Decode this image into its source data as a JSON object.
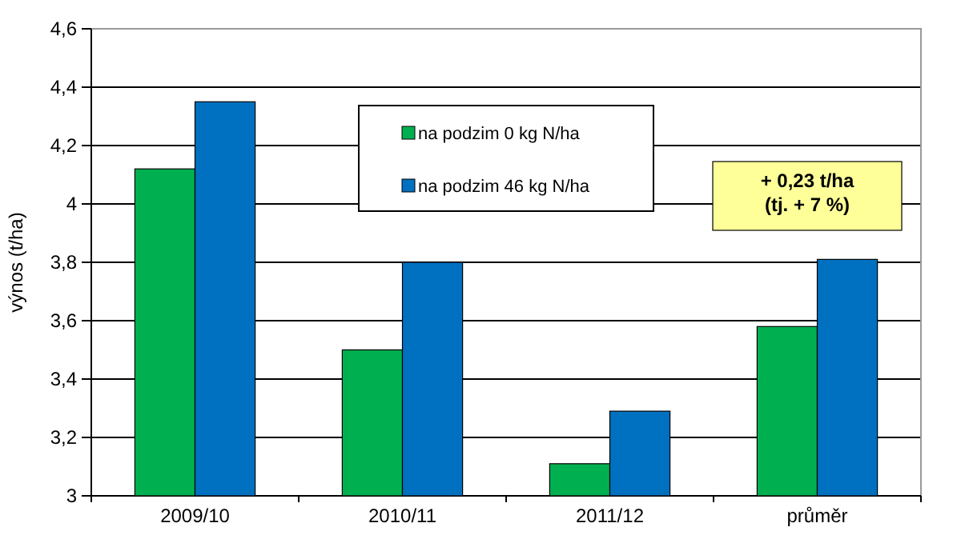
{
  "chart_data": {
    "type": "bar",
    "ylabel": "výnos (t/ha)",
    "categories": [
      "2009/10",
      "2010/11",
      "2011/12",
      "průměr"
    ],
    "series": [
      {
        "name": "na podzim 0 kg N/ha",
        "color": "#00b050",
        "values": [
          4.12,
          3.5,
          3.11,
          3.58
        ]
      },
      {
        "name": "na podzim 46 kg N/ha",
        "color": "#0070c0",
        "values": [
          4.35,
          3.8,
          3.29,
          3.81
        ]
      }
    ],
    "ylim": [
      3,
      4.6
    ],
    "yticks": [
      3,
      {
        "value": 3.2,
        "label": "3,2"
      },
      {
        "value": 3.4,
        "label": "3,4"
      },
      {
        "value": 3.6,
        "label": "3,6"
      },
      {
        "value": 3.8,
        "label": "3,8"
      },
      4,
      {
        "value": 4.2,
        "label": "4,2"
      },
      {
        "value": 4.4,
        "label": "4,4"
      },
      {
        "value": 4.6,
        "label": "4,6"
      }
    ],
    "grid": "y",
    "legend": "top",
    "annotations": [
      "+ 0,23 t/ha\n(tj. + 7 %)"
    ]
  }
}
